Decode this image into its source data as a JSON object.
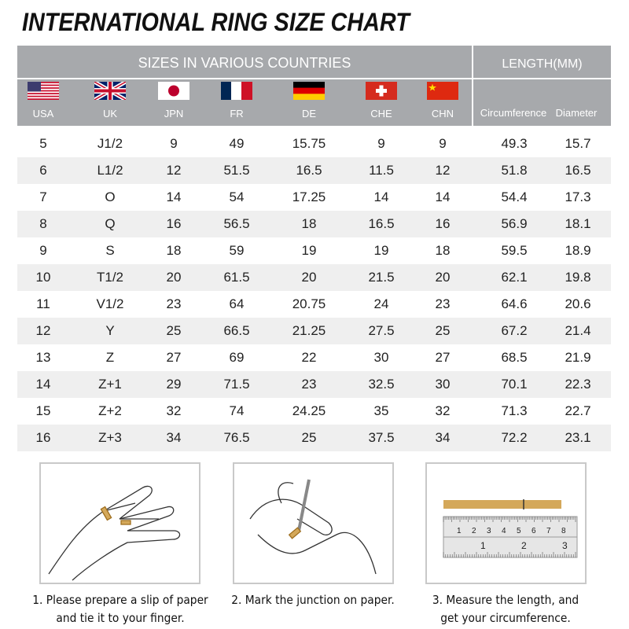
{
  "title": "INTERNATIONAL RING SIZE CHART",
  "header": {
    "sizes": "SIZES IN VARIOUS COUNTRIES",
    "length": "LENGTH(MM)"
  },
  "columns": [
    {
      "label": "USA",
      "flag": "usa-flag"
    },
    {
      "label": "UK",
      "flag": "uk-flag"
    },
    {
      "label": "JPN",
      "flag": "japan-flag"
    },
    {
      "label": "FR",
      "flag": "france-flag"
    },
    {
      "label": "DE",
      "flag": "germany-flag"
    },
    {
      "label": "CHE",
      "flag": "switzerland-flag"
    },
    {
      "label": "CHN",
      "flag": "china-flag"
    }
  ],
  "length_columns": [
    "Circumference",
    "Diameter"
  ],
  "rows": [
    [
      "5",
      "J1/2",
      "9",
      "49",
      "15.75",
      "9",
      "9",
      "49.3",
      "15.7"
    ],
    [
      "6",
      "L1/2",
      "12",
      "51.5",
      "16.5",
      "11.5",
      "12",
      "51.8",
      "16.5"
    ],
    [
      "7",
      "O",
      "14",
      "54",
      "17.25",
      "14",
      "14",
      "54.4",
      "17.3"
    ],
    [
      "8",
      "Q",
      "16",
      "56.5",
      "18",
      "16.5",
      "16",
      "56.9",
      "18.1"
    ],
    [
      "9",
      "S",
      "18",
      "59",
      "19",
      "19",
      "18",
      "59.5",
      "18.9"
    ],
    [
      "10",
      "T1/2",
      "20",
      "61.5",
      "20",
      "21.5",
      "20",
      "62.1",
      "19.8"
    ],
    [
      "11",
      "V1/2",
      "23",
      "64",
      "20.75",
      "24",
      "23",
      "64.6",
      "20.6"
    ],
    [
      "12",
      "Y",
      "25",
      "66.5",
      "21.25",
      "27.5",
      "25",
      "67.2",
      "21.4"
    ],
    [
      "13",
      "Z",
      "27",
      "69",
      "22",
      "30",
      "27",
      "68.5",
      "21.9"
    ],
    [
      "14",
      "Z+1",
      "29",
      "71.5",
      "23",
      "32.5",
      "30",
      "70.1",
      "22.3"
    ],
    [
      "15",
      "Z+2",
      "32",
      "74",
      "24.25",
      "35",
      "32",
      "71.3",
      "22.7"
    ],
    [
      "16",
      "Z+3",
      "34",
      "76.5",
      "25",
      "37.5",
      "34",
      "72.2",
      "23.1"
    ]
  ],
  "steps": [
    {
      "line1": "1. Please prepare a slip of paper",
      "line2": "and tie it to your finger."
    },
    {
      "line1": "2. Mark the junction on paper.",
      "line2": ""
    },
    {
      "line1": "3. Measure the length, and",
      "line2": "get your circumference."
    }
  ],
  "ruler": {
    "top": [
      "1",
      "2",
      "3",
      "4",
      "5",
      "6",
      "7",
      "8"
    ],
    "bottom": [
      "1",
      "2",
      "3"
    ]
  },
  "colors": {
    "header": "#a7a9ac",
    "alt_row": "#efefef",
    "paper": "#d4a85a"
  }
}
